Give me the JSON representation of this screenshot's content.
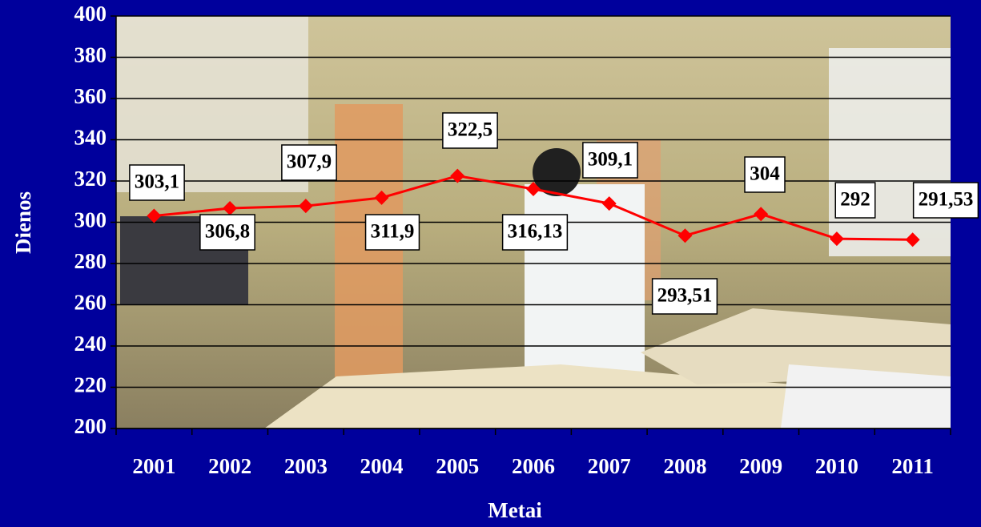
{
  "chart_data": {
    "type": "line",
    "x_label": "Metai",
    "y_label": "Dienos",
    "categories": [
      "2001",
      "2002",
      "2003",
      "2004",
      "2005",
      "2006",
      "2007",
      "2008",
      "2009",
      "2010",
      "2011"
    ],
    "series": [
      {
        "color": "#ff0000",
        "values": [
          303.1,
          306.8,
          307.9,
          311.9,
          322.5,
          316.13,
          309.1,
          293.51,
          304,
          292,
          291.53
        ],
        "value_labels": [
          "303,1",
          "306,8",
          "307,9",
          "311,9",
          "322,5",
          "316,13",
          "309,1",
          "293,51",
          "304",
          "292",
          "291,53"
        ]
      }
    ],
    "ylim": [
      200,
      400
    ],
    "yticks": [
      200,
      220,
      240,
      260,
      280,
      300,
      320,
      340,
      360,
      380,
      400
    ],
    "grid": true
  }
}
